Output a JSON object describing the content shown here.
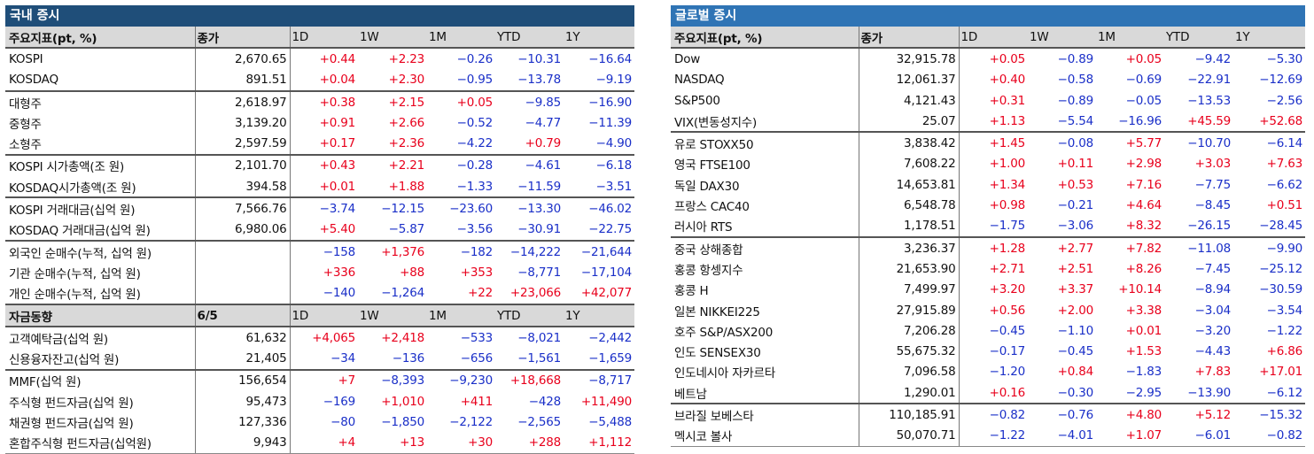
{
  "domestic": {
    "title": "국내 증시",
    "sections": [
      {
        "header": [
          "주요지표(pt, %)",
          "종가",
          "1D",
          "1W",
          "1M",
          "YTD",
          "1Y"
        ],
        "groups": [
          [
            [
              "KOSPI",
              "2,670.65",
              "+0.44",
              "+2.23",
              "−0.26",
              "−10.31",
              "−16.64"
            ],
            [
              "KOSDAQ",
              "891.51",
              "+0.04",
              "+2.30",
              "−0.95",
              "−13.78",
              "−9.19"
            ]
          ],
          [
            [
              "대형주",
              "2,618.97",
              "+0.38",
              "+2.15",
              "+0.05",
              "−9.85",
              "−16.90"
            ],
            [
              "중형주",
              "3,139.20",
              "+0.91",
              "+2.66",
              "−0.52",
              "−4.77",
              "−11.39"
            ],
            [
              "소형주",
              "2,597.59",
              "+0.17",
              "+2.36",
              "−4.22",
              "+0.79",
              "−4.90"
            ]
          ],
          [
            [
              "KOSPI 시가총액(조 원)",
              "2,101.70",
              "+0.43",
              "+2.21",
              "−0.28",
              "−4.61",
              "−6.18"
            ],
            [
              "KOSDAQ시가총액(조 원)",
              "394.58",
              "+0.01",
              "+1.88",
              "−1.33",
              "−11.59",
              "−3.51"
            ]
          ],
          [
            [
              "KOSPI 거래대금(십억 원)",
              "7,566.76",
              "−3.74",
              "−12.15",
              "−23.60",
              "−13.30",
              "−46.02"
            ],
            [
              "KOSDAQ 거래대금(십억 원)",
              "6,980.06",
              "+5.40",
              "−5.87",
              "−3.56",
              "−30.91",
              "−22.75"
            ]
          ],
          [
            [
              "외국인 순매수(누적, 십억 원)",
              "",
              "−158",
              "+1,376",
              "−182",
              "−14,222",
              "−21,644"
            ],
            [
              "기관 순매수(누적, 십억 원)",
              "",
              "+336",
              "+88",
              "+353",
              "−8,771",
              "−17,104"
            ],
            [
              "개인 순매수(누적, 십억 원)",
              "",
              "−140",
              "−1,264",
              "+22",
              "+23,066",
              "+42,077"
            ]
          ]
        ]
      },
      {
        "header": [
          "자금동향",
          "6/5",
          "1D",
          "1W",
          "1M",
          "YTD",
          "1Y"
        ],
        "groups": [
          [
            [
              "고객예탁금(십억 원)",
              "61,632",
              "+4,065",
              "+2,418",
              "−533",
              "−8,021",
              "−2,442"
            ],
            [
              "신용융자잔고(십억 원)",
              "21,405",
              "−34",
              "−136",
              "−656",
              "−1,561",
              "−1,659"
            ]
          ],
          [
            [
              "MMF(십억 원)",
              "156,654",
              "+7",
              "−8,393",
              "−9,230",
              "+18,668",
              "−8,717"
            ],
            [
              "주식형 펀드자금(십억 원)",
              "95,473",
              "−169",
              "+1,010",
              "+411",
              "−428",
              "+11,490"
            ],
            [
              "채권형 펀드자금(십억 원)",
              "127,336",
              "−80",
              "−1,850",
              "−2,122",
              "−2,565",
              "−5,488"
            ],
            [
              "혼합주식형 펀드자금(십억원)",
              "9,943",
              "+4",
              "+13",
              "+30",
              "+288",
              "+1,112"
            ]
          ]
        ]
      }
    ]
  },
  "global": {
    "title": "글로벌 증시",
    "sections": [
      {
        "header": [
          "주요지표(pt, %)",
          "종가",
          "1D",
          "1W",
          "1M",
          "YTD",
          "1Y"
        ],
        "groups": [
          [
            [
              "Dow",
              "32,915.78",
              "+0.05",
              "−0.89",
              "+0.05",
              "−9.42",
              "−5.30"
            ],
            [
              "NASDAQ",
              "12,061.37",
              "+0.40",
              "−0.58",
              "−0.69",
              "−22.91",
              "−12.69"
            ],
            [
              "S&P500",
              "4,121.43",
              "+0.31",
              "−0.89",
              "−0.05",
              "−13.53",
              "−2.56"
            ],
            [
              "VIX(변동성지수)",
              "25.07",
              "+1.13",
              "−5.54",
              "−16.96",
              "+45.59",
              "+52.68"
            ]
          ],
          [
            [
              "유로 STOXX50",
              "3,838.42",
              "+1.45",
              "−0.08",
              "+5.77",
              "−10.70",
              "−6.14"
            ],
            [
              "영국 FTSE100",
              "7,608.22",
              "+1.00",
              "+0.11",
              "+2.98",
              "+3.03",
              "+7.63"
            ],
            [
              "독일 DAX30",
              "14,653.81",
              "+1.34",
              "+0.53",
              "+7.16",
              "−7.75",
              "−6.62"
            ],
            [
              "프랑스 CAC40",
              "6,548.78",
              "+0.98",
              "−0.21",
              "+4.64",
              "−8.45",
              "+0.51"
            ],
            [
              "러시아 RTS",
              "1,178.51",
              "−1.75",
              "−3.06",
              "+8.32",
              "−26.15",
              "−28.45"
            ]
          ],
          [
            [
              "중국 상해종합",
              "3,236.37",
              "+1.28",
              "+2.77",
              "+7.82",
              "−11.08",
              "−9.90"
            ],
            [
              "홍콩 항셍지수",
              "21,653.90",
              "+2.71",
              "+2.51",
              "+8.26",
              "−7.45",
              "−25.12"
            ],
            [
              "홍콩 H",
              "7,499.97",
              "+3.20",
              "+3.37",
              "+10.14",
              "−8.94",
              "−30.59"
            ],
            [
              "일본 NIKKEI225",
              "27,915.89",
              "+0.56",
              "+2.00",
              "+3.38",
              "−3.04",
              "−3.54"
            ],
            [
              "호주 S&P/ASX200",
              "7,206.28",
              "−0.45",
              "−1.10",
              "+0.01",
              "−3.20",
              "−1.22"
            ],
            [
              "인도 SENSEX30",
              "55,675.32",
              "−0.17",
              "−0.45",
              "+1.53",
              "−4.43",
              "+6.86"
            ],
            [
              "인도네시아 자카르타",
              "7,096.58",
              "−1.20",
              "+0.84",
              "−1.83",
              "+7.83",
              "+17.01"
            ],
            [
              "베트남",
              "1,290.01",
              "+0.16",
              "−0.30",
              "−2.95",
              "−13.90",
              "−6.12"
            ]
          ],
          [
            [
              "브라질 보베스타",
              "110,185.91",
              "−0.82",
              "−0.76",
              "+4.80",
              "+5.12",
              "−15.32"
            ],
            [
              "멕시코 볼사",
              "50,070.71",
              "−1.22",
              "−4.01",
              "+1.07",
              "−6.01",
              "−0.82"
            ]
          ]
        ]
      }
    ]
  },
  "colors": {
    "positive": "#e8001c",
    "negative": "#1a2fc8",
    "domestic_title_bg": "#1f4e79",
    "global_title_bg": "#2f74b5",
    "header_bg": "#d9d9d9"
  }
}
